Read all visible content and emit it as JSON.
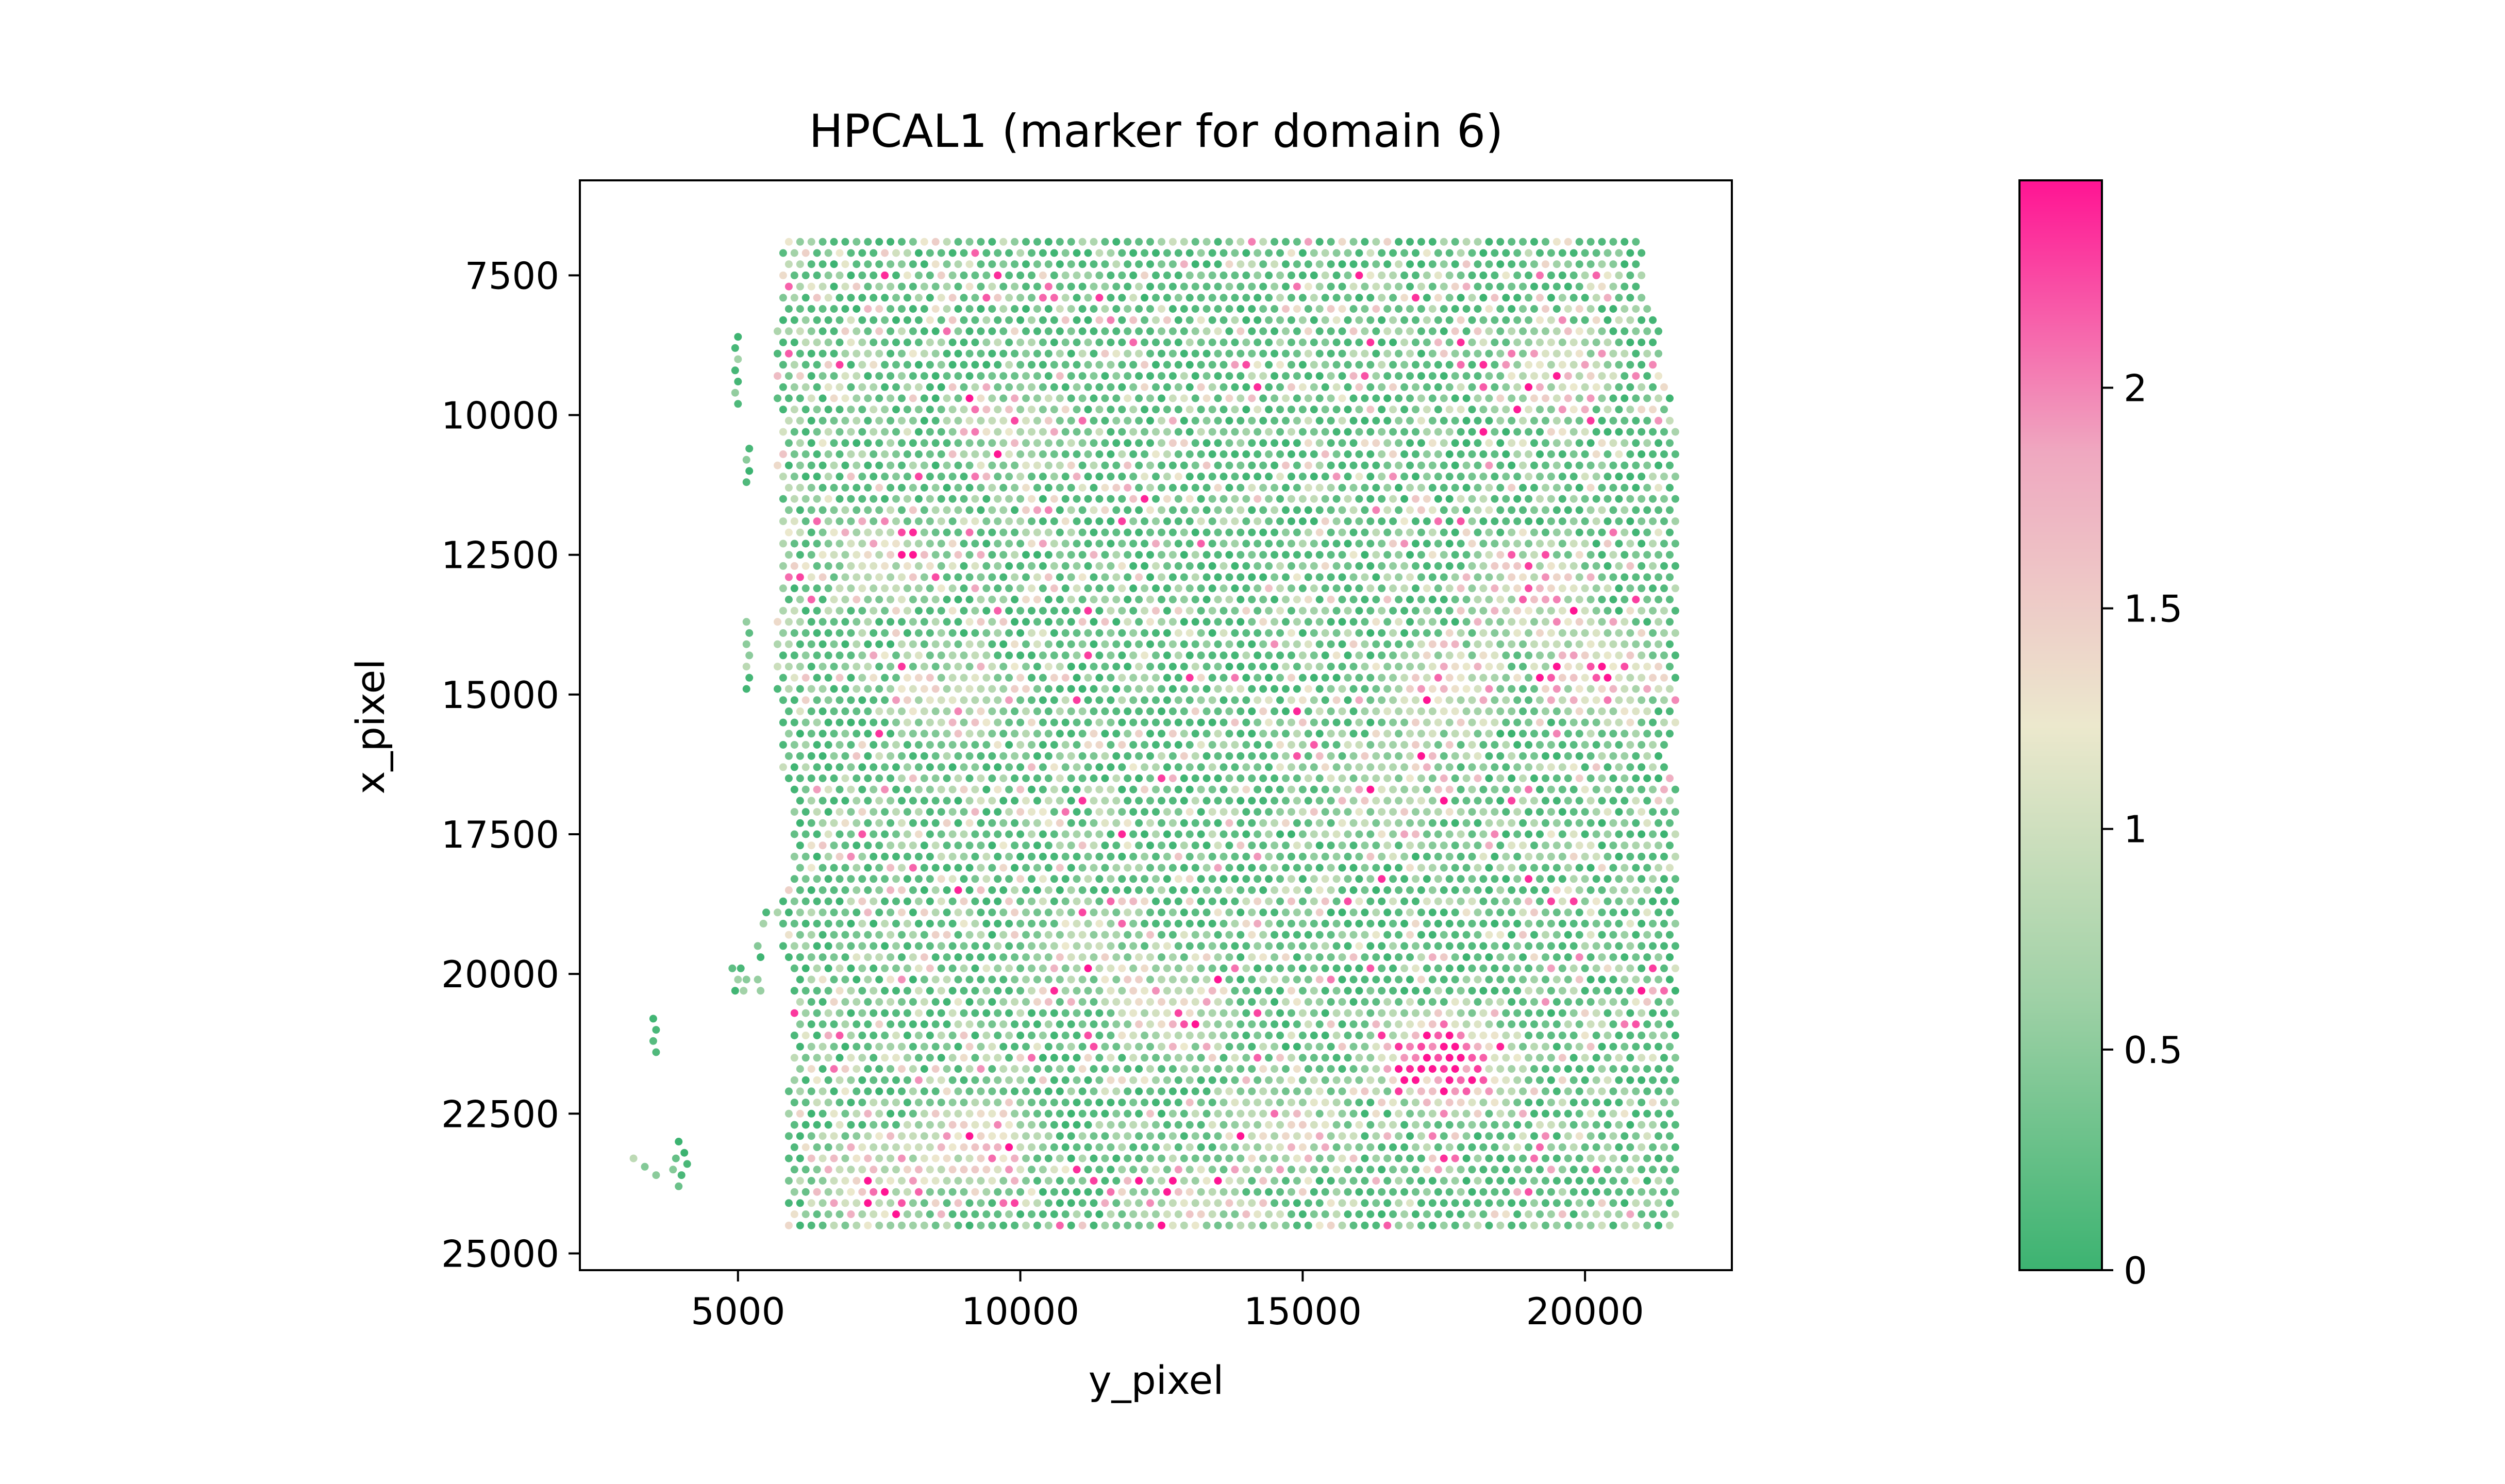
{
  "chart_data": {
    "type": "scatter",
    "title": "HPCAL1 (marker for domain 6)",
    "xlabel": "y_pixel",
    "ylabel": "x_pixel",
    "xlim": [
      2200,
      22600
    ],
    "ylim": [
      25300,
      5800
    ],
    "y_inverted": true,
    "x_ticks": [
      5000,
      10000,
      15000,
      20000
    ],
    "x_tick_labels": [
      "5000",
      "10000",
      "15000",
      "20000"
    ],
    "y_ticks": [
      7500,
      10000,
      12500,
      15000,
      17500,
      20000,
      22500,
      25000
    ],
    "y_tick_labels": [
      "7500",
      "10000",
      "12500",
      "15000",
      "17500",
      "20000",
      "22500",
      "25000"
    ],
    "grid": false,
    "colorbar": {
      "min": 0,
      "max": 2.47,
      "ticks": [
        0,
        0.5,
        1,
        1.5,
        2
      ],
      "tick_labels": [
        "0",
        "0.5",
        "1",
        "1.5",
        "2"
      ],
      "colors": [
        "#3cb371",
        "#9fd1a6",
        "#ece8cd",
        "#efa8c0",
        "#ff1493"
      ]
    },
    "spot_grid": {
      "row_step": 140,
      "col_step": 200,
      "rows": [
        [
          6900,
          5900,
          20900
        ],
        [
          7100,
          5800,
          21000
        ],
        [
          7300,
          5900,
          20900
        ],
        [
          7500,
          5800,
          21000
        ],
        [
          7700,
          5900,
          20900
        ],
        [
          7900,
          5800,
          21000
        ],
        [
          8100,
          5900,
          21100
        ],
        [
          8300,
          5800,
          21200
        ],
        [
          8500,
          5700,
          21300
        ],
        [
          8700,
          5800,
          21300
        ],
        [
          8900,
          5700,
          21300
        ],
        [
          9100,
          5800,
          21300
        ],
        [
          9300,
          5700,
          21400
        ],
        [
          9500,
          5800,
          21400
        ],
        [
          9700,
          5700,
          21500
        ],
        [
          9900,
          5800,
          21500
        ],
        [
          10100,
          5900,
          21500
        ],
        [
          10300,
          5800,
          21600
        ],
        [
          10500,
          5900,
          21600
        ],
        [
          10700,
          5800,
          21600
        ],
        [
          10900,
          5700,
          21600
        ],
        [
          11100,
          5800,
          21600
        ],
        [
          11300,
          5900,
          21600
        ],
        [
          11500,
          5800,
          21600
        ],
        [
          11700,
          5900,
          21600
        ],
        [
          11900,
          5800,
          21600
        ],
        [
          12100,
          5900,
          21600
        ],
        [
          12300,
          5800,
          21600
        ],
        [
          12500,
          5900,
          21600
        ],
        [
          12700,
          5800,
          21600
        ],
        [
          12900,
          5900,
          21600
        ],
        [
          13100,
          5800,
          21600
        ],
        [
          13300,
          5900,
          21600
        ],
        [
          13500,
          5800,
          21600
        ],
        [
          13700,
          5700,
          21600
        ],
        [
          13900,
          5800,
          21600
        ],
        [
          14100,
          5700,
          21600
        ],
        [
          14300,
          5800,
          21600
        ],
        [
          14500,
          5700,
          21600
        ],
        [
          14700,
          5800,
          21600
        ],
        [
          14900,
          5700,
          21600
        ],
        [
          15100,
          5800,
          21600
        ],
        [
          15300,
          5900,
          21600
        ],
        [
          15500,
          5800,
          21600
        ],
        [
          15700,
          5900,
          21500
        ],
        [
          15900,
          5800,
          21400
        ],
        [
          16100,
          5900,
          21400
        ],
        [
          16300,
          5800,
          21400
        ],
        [
          16500,
          5900,
          21500
        ],
        [
          16700,
          6000,
          21600
        ],
        [
          16900,
          6100,
          21600
        ],
        [
          17100,
          6000,
          21600
        ],
        [
          17300,
          6100,
          21600
        ],
        [
          17500,
          6000,
          21600
        ],
        [
          17700,
          6100,
          21600
        ],
        [
          17900,
          6000,
          21600
        ],
        [
          18100,
          6100,
          21600
        ],
        [
          18300,
          6000,
          21600
        ],
        [
          18500,
          5900,
          21600
        ],
        [
          18700,
          5800,
          21600
        ],
        [
          18900,
          5700,
          21600
        ],
        [
          19100,
          5800,
          21600
        ],
        [
          19300,
          5900,
          21600
        ],
        [
          19500,
          5800,
          21600
        ],
        [
          19700,
          5900,
          21600
        ],
        [
          19900,
          6000,
          21600
        ],
        [
          20100,
          6100,
          21600
        ],
        [
          20300,
          6000,
          21600
        ],
        [
          20500,
          6100,
          21600
        ],
        [
          20700,
          6000,
          21600
        ],
        [
          20900,
          6100,
          21600
        ],
        [
          21100,
          6000,
          21600
        ],
        [
          21300,
          6100,
          21600
        ],
        [
          21500,
          6000,
          21600
        ],
        [
          21700,
          6100,
          21600
        ],
        [
          21900,
          6000,
          21600
        ],
        [
          22100,
          5900,
          21600
        ],
        [
          22300,
          6000,
          21600
        ],
        [
          22500,
          5900,
          21600
        ],
        [
          22700,
          6000,
          21600
        ],
        [
          22900,
          5900,
          21600
        ],
        [
          23100,
          6000,
          21600
        ],
        [
          23300,
          5900,
          21600
        ],
        [
          23500,
          6000,
          21600
        ],
        [
          23700,
          5900,
          21600
        ],
        [
          23900,
          6000,
          21600
        ],
        [
          24100,
          5900,
          21600
        ],
        [
          24300,
          6000,
          21600
        ],
        [
          24500,
          5900,
          21600
        ]
      ],
      "extra_points": [
        [
          8600,
          5000
        ],
        [
          8800,
          4950
        ],
        [
          9000,
          5000
        ],
        [
          9200,
          4950
        ],
        [
          9400,
          5000
        ],
        [
          9600,
          4950
        ],
        [
          9800,
          5000
        ],
        [
          10600,
          5200
        ],
        [
          10800,
          5150
        ],
        [
          11000,
          5200
        ],
        [
          11200,
          5150
        ],
        [
          13700,
          5150
        ],
        [
          13900,
          5200
        ],
        [
          14100,
          5150
        ],
        [
          14300,
          5200
        ],
        [
          14500,
          5150
        ],
        [
          14700,
          5200
        ],
        [
          14900,
          5150
        ],
        [
          18900,
          5500
        ],
        [
          19100,
          5450
        ],
        [
          19500,
          5350
        ],
        [
          19700,
          5400
        ],
        [
          19900,
          4900
        ],
        [
          19900,
          5050
        ],
        [
          20100,
          5000
        ],
        [
          20100,
          5150
        ],
        [
          20300,
          4950
        ],
        [
          20300,
          5100
        ],
        [
          20100,
          5350
        ],
        [
          20300,
          5400
        ],
        [
          20800,
          3500
        ],
        [
          21000,
          3550
        ],
        [
          21200,
          3500
        ],
        [
          21400,
          3550
        ],
        [
          23000,
          3950
        ],
        [
          23200,
          4050
        ],
        [
          23300,
          3900
        ],
        [
          23400,
          4100
        ],
        [
          23500,
          3850
        ],
        [
          23600,
          4000
        ],
        [
          23800,
          3950
        ],
        [
          23300,
          3150
        ],
        [
          23450,
          3350
        ],
        [
          23600,
          3550
        ]
      ],
      "hotspots": [
        [
          21500,
          17200,
          1.9
        ],
        [
          21700,
          17800,
          1.6
        ],
        [
          23000,
          9200,
          1.6
        ],
        [
          14600,
          20200,
          1.6
        ],
        [
          14900,
          17500,
          1.5
        ],
        [
          13100,
          19000,
          1.5
        ],
        [
          23700,
          7400,
          1.3
        ],
        [
          20700,
          12700,
          1.3
        ],
        [
          22700,
          14600,
          1.1
        ],
        [
          16700,
          16400,
          1.0
        ],
        [
          12600,
          7600,
          1.1
        ],
        [
          15100,
          8800,
          0.9
        ],
        [
          9200,
          19400,
          1.1
        ],
        [
          24100,
          12900,
          1.0
        ],
        [
          19600,
          11100,
          0.9
        ],
        [
          10200,
          9800,
          0.9
        ]
      ]
    }
  }
}
